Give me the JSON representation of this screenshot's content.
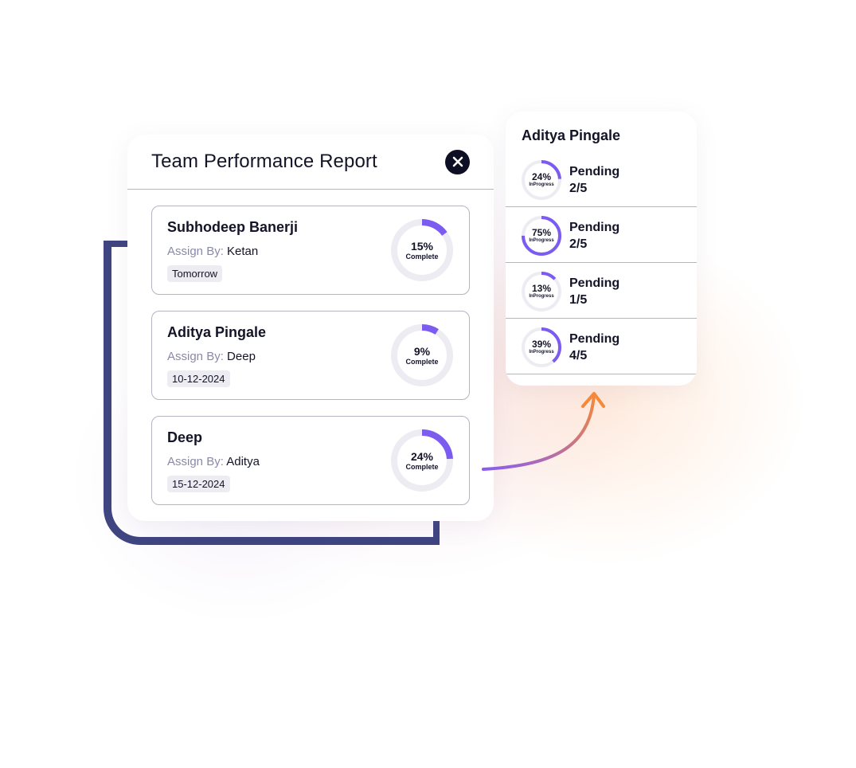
{
  "colors": {
    "accent": "#7c5cf0",
    "ring_track": "#ececf2",
    "bracket": "#3f4580",
    "arrow_start": "#8a5cf0",
    "arrow_end": "#f5883a"
  },
  "report": {
    "title": "Team Performance Report",
    "close_icon": "close-icon",
    "tasks": [
      {
        "name": "Subhodeep Banerji",
        "assign_label": "Assign By:",
        "assignee": "Ketan",
        "date": "Tomorrow",
        "percent_text": "15%",
        "status": "Complete",
        "progress": 0.15
      },
      {
        "name": "Aditya Pingale",
        "assign_label": "Assign By:",
        "assignee": "Deep",
        "date": "10-12-2024",
        "percent_text": "9%",
        "status": "Complete",
        "progress": 0.09
      },
      {
        "name": "Deep",
        "assign_label": "Assign By:",
        "assignee": "Aditya",
        "date": "15-12-2024",
        "percent_text": "24%",
        "status": "Complete",
        "progress": 0.24
      }
    ]
  },
  "detail": {
    "title": "Aditya Pingale",
    "rows": [
      {
        "percent_text": "24%",
        "ring_label": "InProgress",
        "status": "Pending",
        "count": "2/5",
        "progress": 0.24
      },
      {
        "percent_text": "75%",
        "ring_label": "InProgress",
        "status": "Pending",
        "count": "2/5",
        "progress": 0.75
      },
      {
        "percent_text": "13%",
        "ring_label": "InProgress",
        "status": "Pending",
        "count": "1/5",
        "progress": 0.13
      },
      {
        "percent_text": "39%",
        "ring_label": "InProgress",
        "status": "Pending",
        "count": "4/5",
        "progress": 0.39
      }
    ]
  }
}
